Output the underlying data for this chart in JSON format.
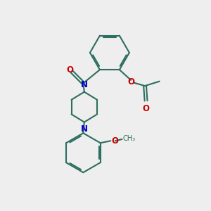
{
  "background_color": "#eeeeee",
  "bond_color": "#2d6e5e",
  "nitrogen_color": "#0000cc",
  "oxygen_color": "#cc0000",
  "line_width": 1.5,
  "font_size": 8.5,
  "figsize": [
    3.0,
    3.0
  ],
  "dpi": 100,
  "xlim": [
    0,
    10
  ],
  "ylim": [
    0,
    10
  ]
}
